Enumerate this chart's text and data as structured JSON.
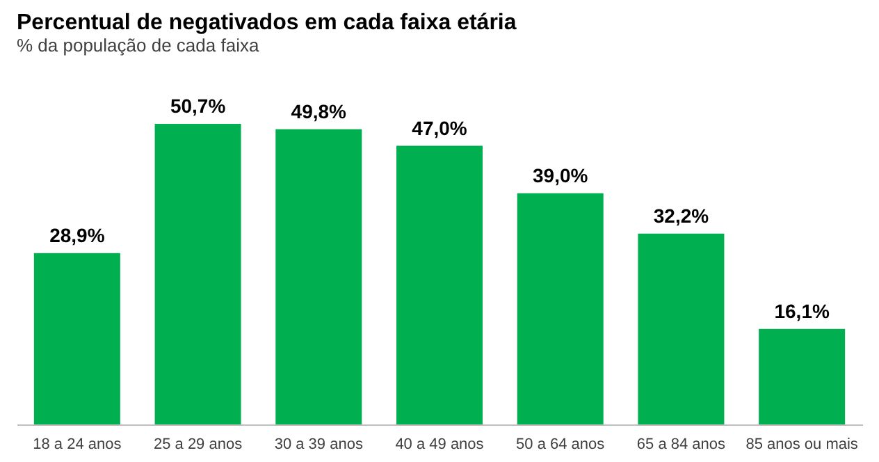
{
  "chart_data": {
    "type": "bar",
    "title": "Percentual de negativados em cada faixa etária",
    "subtitle": "% da população de cada faixa",
    "categories": [
      "18 a 24 anos",
      "25 a 29 anos",
      "30 a 39 anos",
      "40 a 49 anos",
      "50 a 64 anos",
      "65 a 84 anos",
      "85 anos ou mais"
    ],
    "values": [
      28.9,
      50.7,
      49.8,
      47.0,
      39.0,
      32.2,
      16.1
    ],
    "value_labels": [
      "28,9%",
      "50,7%",
      "49,8%",
      "47,0%",
      "39,0%",
      "32,2%",
      "16,1%"
    ],
    "color": "#00b050",
    "grid": false
  }
}
